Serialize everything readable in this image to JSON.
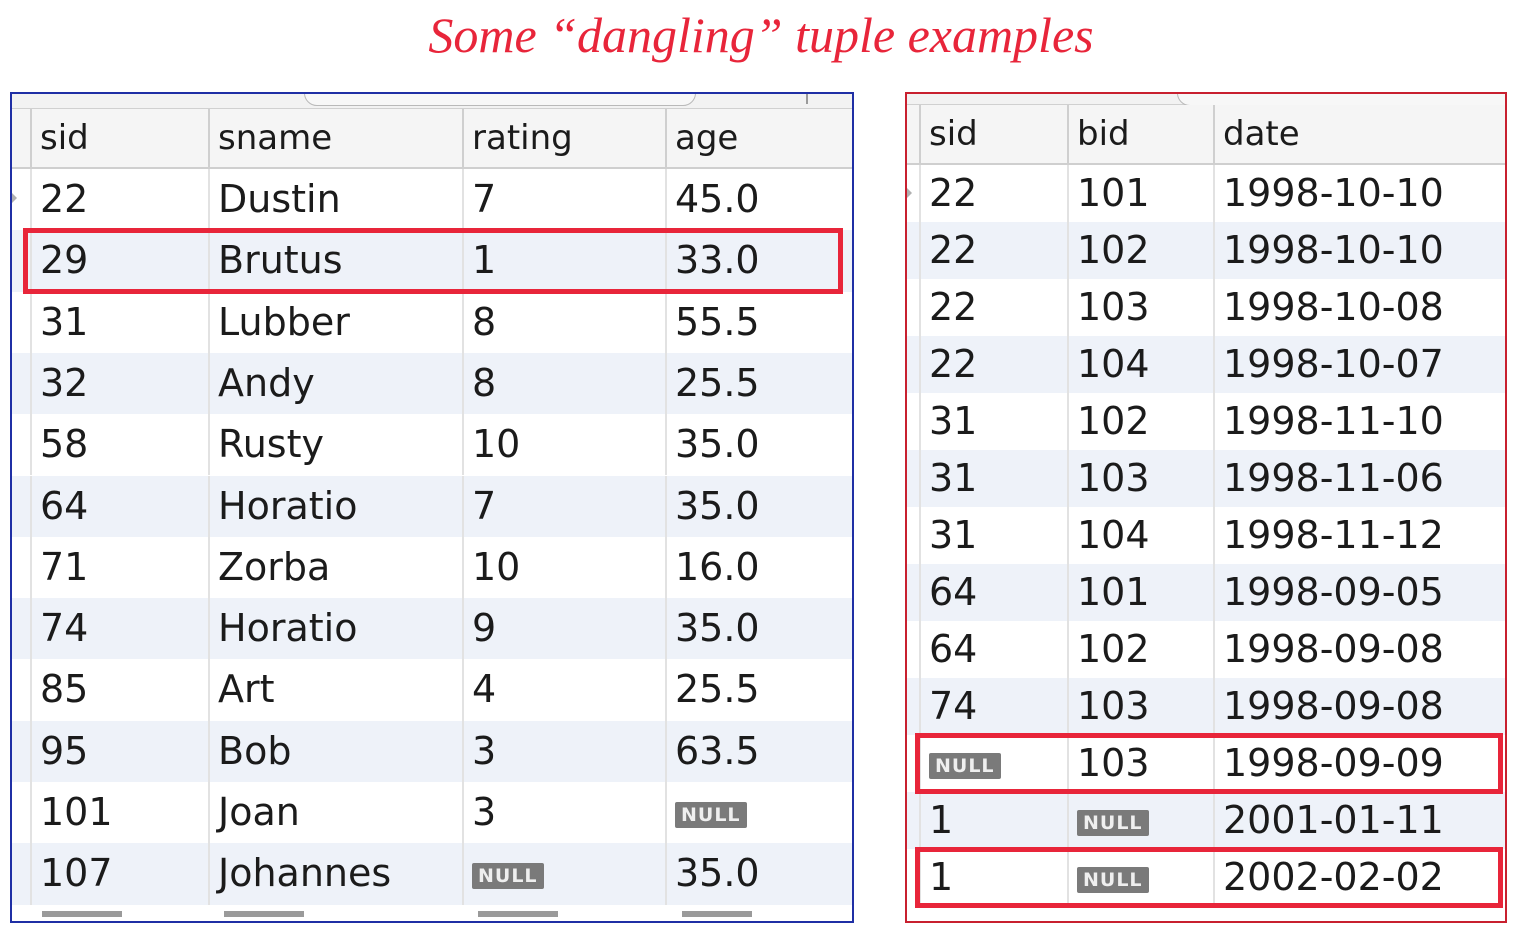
{
  "title": "Some “dangling” tuple examples",
  "colors": {
    "title": "#e8253a",
    "highlight": "#e8253a",
    "left_border": "#1f2fa5",
    "right_border": "#c8202f",
    "null_badge": "#7a7a7a"
  },
  "sailors": {
    "columns": [
      "sid",
      "sname",
      "rating",
      "age"
    ],
    "rows": [
      [
        "22",
        "Dustin",
        "7",
        "45.0"
      ],
      [
        "29",
        "Brutus",
        "1",
        "33.0"
      ],
      [
        "31",
        "Lubber",
        "8",
        "55.5"
      ],
      [
        "32",
        "Andy",
        "8",
        "25.5"
      ],
      [
        "58",
        "Rusty",
        "10",
        "35.0"
      ],
      [
        "64",
        "Horatio",
        "7",
        "35.0"
      ],
      [
        "71",
        "Zorba",
        "10",
        "16.0"
      ],
      [
        "74",
        "Horatio",
        "9",
        "35.0"
      ],
      [
        "85",
        "Art",
        "4",
        "25.5"
      ],
      [
        "95",
        "Bob",
        "3",
        "63.5"
      ],
      [
        "101",
        "Joan",
        "3",
        null
      ],
      [
        "107",
        "Johannes",
        null,
        "35.0"
      ]
    ],
    "highlighted_rows": [
      1
    ]
  },
  "reserves": {
    "columns": [
      "sid",
      "bid",
      "date"
    ],
    "rows": [
      [
        "22",
        "101",
        "1998-10-10"
      ],
      [
        "22",
        "102",
        "1998-10-10"
      ],
      [
        "22",
        "103",
        "1998-10-08"
      ],
      [
        "22",
        "104",
        "1998-10-07"
      ],
      [
        "31",
        "102",
        "1998-11-10"
      ],
      [
        "31",
        "103",
        "1998-11-06"
      ],
      [
        "31",
        "104",
        "1998-11-12"
      ],
      [
        "64",
        "101",
        "1998-09-05"
      ],
      [
        "64",
        "102",
        "1998-09-08"
      ],
      [
        "74",
        "103",
        "1998-09-08"
      ],
      [
        null,
        "103",
        "1998-09-09"
      ],
      [
        "1",
        null,
        "2001-01-11"
      ],
      [
        "1",
        null,
        "2002-02-02"
      ]
    ],
    "highlighted_rows": [
      10,
      12
    ]
  },
  "null_label": "NULL"
}
